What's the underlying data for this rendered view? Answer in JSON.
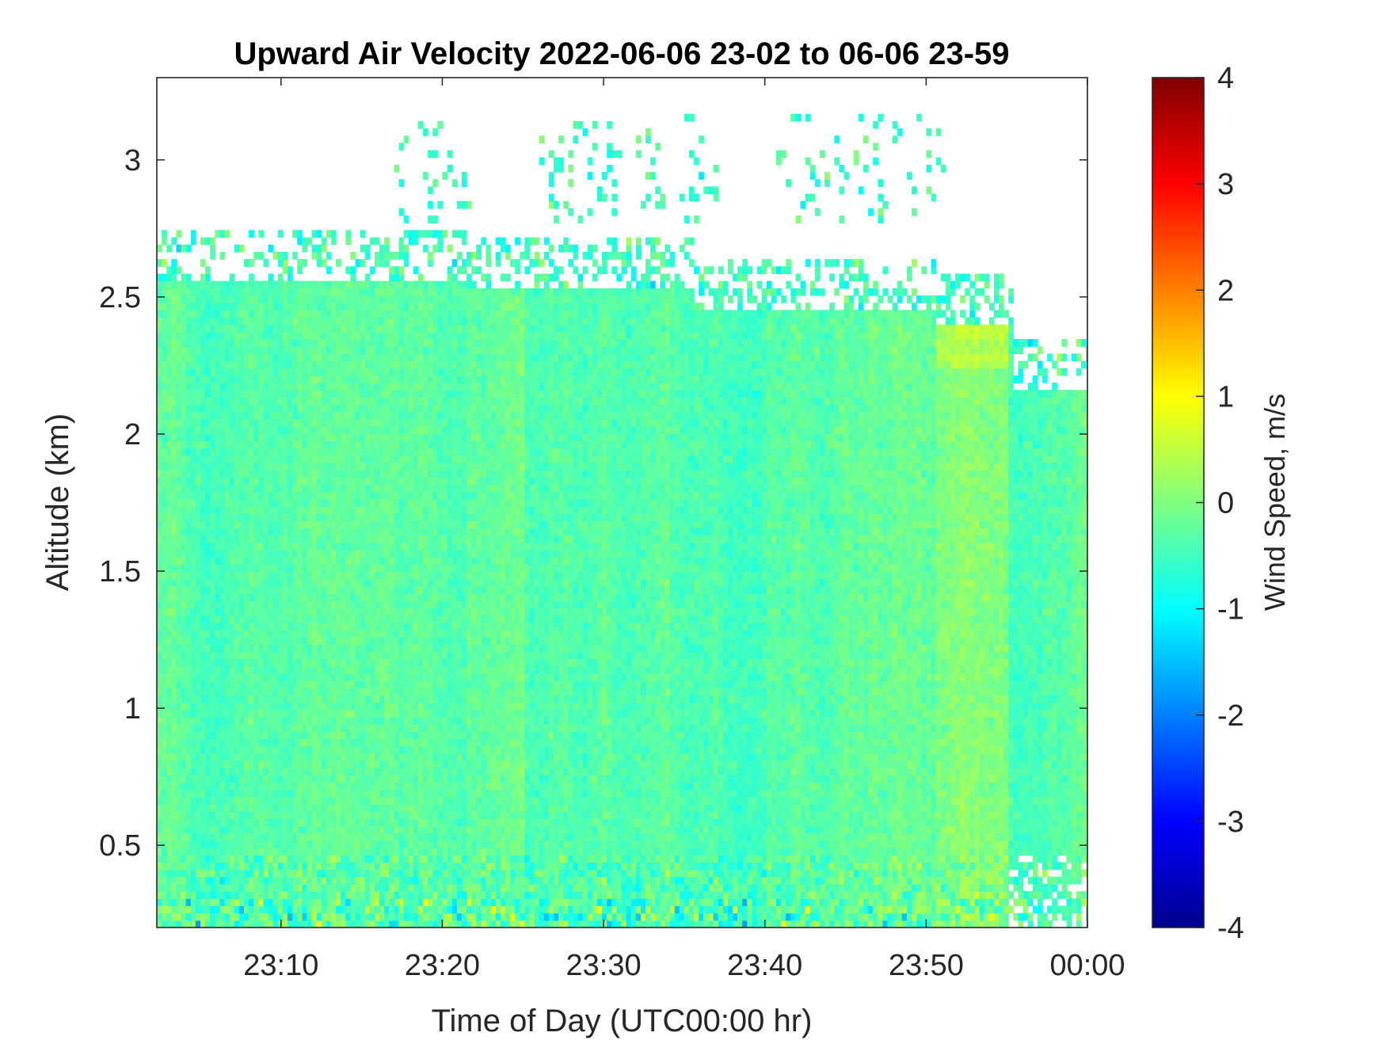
{
  "chart_data": {
    "type": "heatmap",
    "title": "Upward Air Velocity 2022-06-06 23-02 to 06-06 23-59",
    "xlabel": "Time of Day (UTC00:00 hr)",
    "ylabel": "Altitude (km)",
    "x_range": [
      "23:02",
      "00:00"
    ],
    "xlim_minutes_after_2300": [
      2.3,
      60
    ],
    "ylim": [
      0.2,
      3.3
    ],
    "x_ticks": [
      {
        "label": "23:10",
        "value": 10
      },
      {
        "label": "23:20",
        "value": 20
      },
      {
        "label": "23:30",
        "value": 30
      },
      {
        "label": "23:40",
        "value": 40
      },
      {
        "label": "23:50",
        "value": 50
      },
      {
        "label": "00:00",
        "value": 60
      }
    ],
    "y_ticks": [
      {
        "label": "0.5",
        "value": 0.5
      },
      {
        "label": "1",
        "value": 1
      },
      {
        "label": "1.5",
        "value": 1.5
      },
      {
        "label": "2",
        "value": 2
      },
      {
        "label": "2.5",
        "value": 2.5
      },
      {
        "label": "3",
        "value": 3
      }
    ],
    "colorbar": {
      "label": "Wind Speed, m/s",
      "colormap": "jet",
      "range": [
        -4,
        4
      ],
      "ticks": [
        {
          "label": "4",
          "value": 4
        },
        {
          "label": "3",
          "value": 3
        },
        {
          "label": "2",
          "value": 2
        },
        {
          "label": "1",
          "value": 1
        },
        {
          "label": "0",
          "value": 0
        },
        {
          "label": "-1",
          "value": -1
        },
        {
          "label": "-2",
          "value": -2
        },
        {
          "label": "-3",
          "value": -3
        },
        {
          "label": "-4",
          "value": -4
        }
      ]
    },
    "data_top_altitude_km": [
      {
        "time_min": 2.3,
        "top_km": 2.55
      },
      {
        "time_min": 21.5,
        "top_km": 2.52
      },
      {
        "time_min": 35.5,
        "top_km": 2.45
      },
      {
        "time_min": 45.5,
        "top_km": 2.44
      },
      {
        "time_min": 50.5,
        "top_km": 2.38
      },
      {
        "time_min": 55.2,
        "top_km": 2.15
      },
      {
        "time_min": 60,
        "top_km": 2.12
      }
    ],
    "typical_velocity_m_s": {
      "bulk": -0.3,
      "min": -4,
      "max": 4
    },
    "grid": false
  }
}
